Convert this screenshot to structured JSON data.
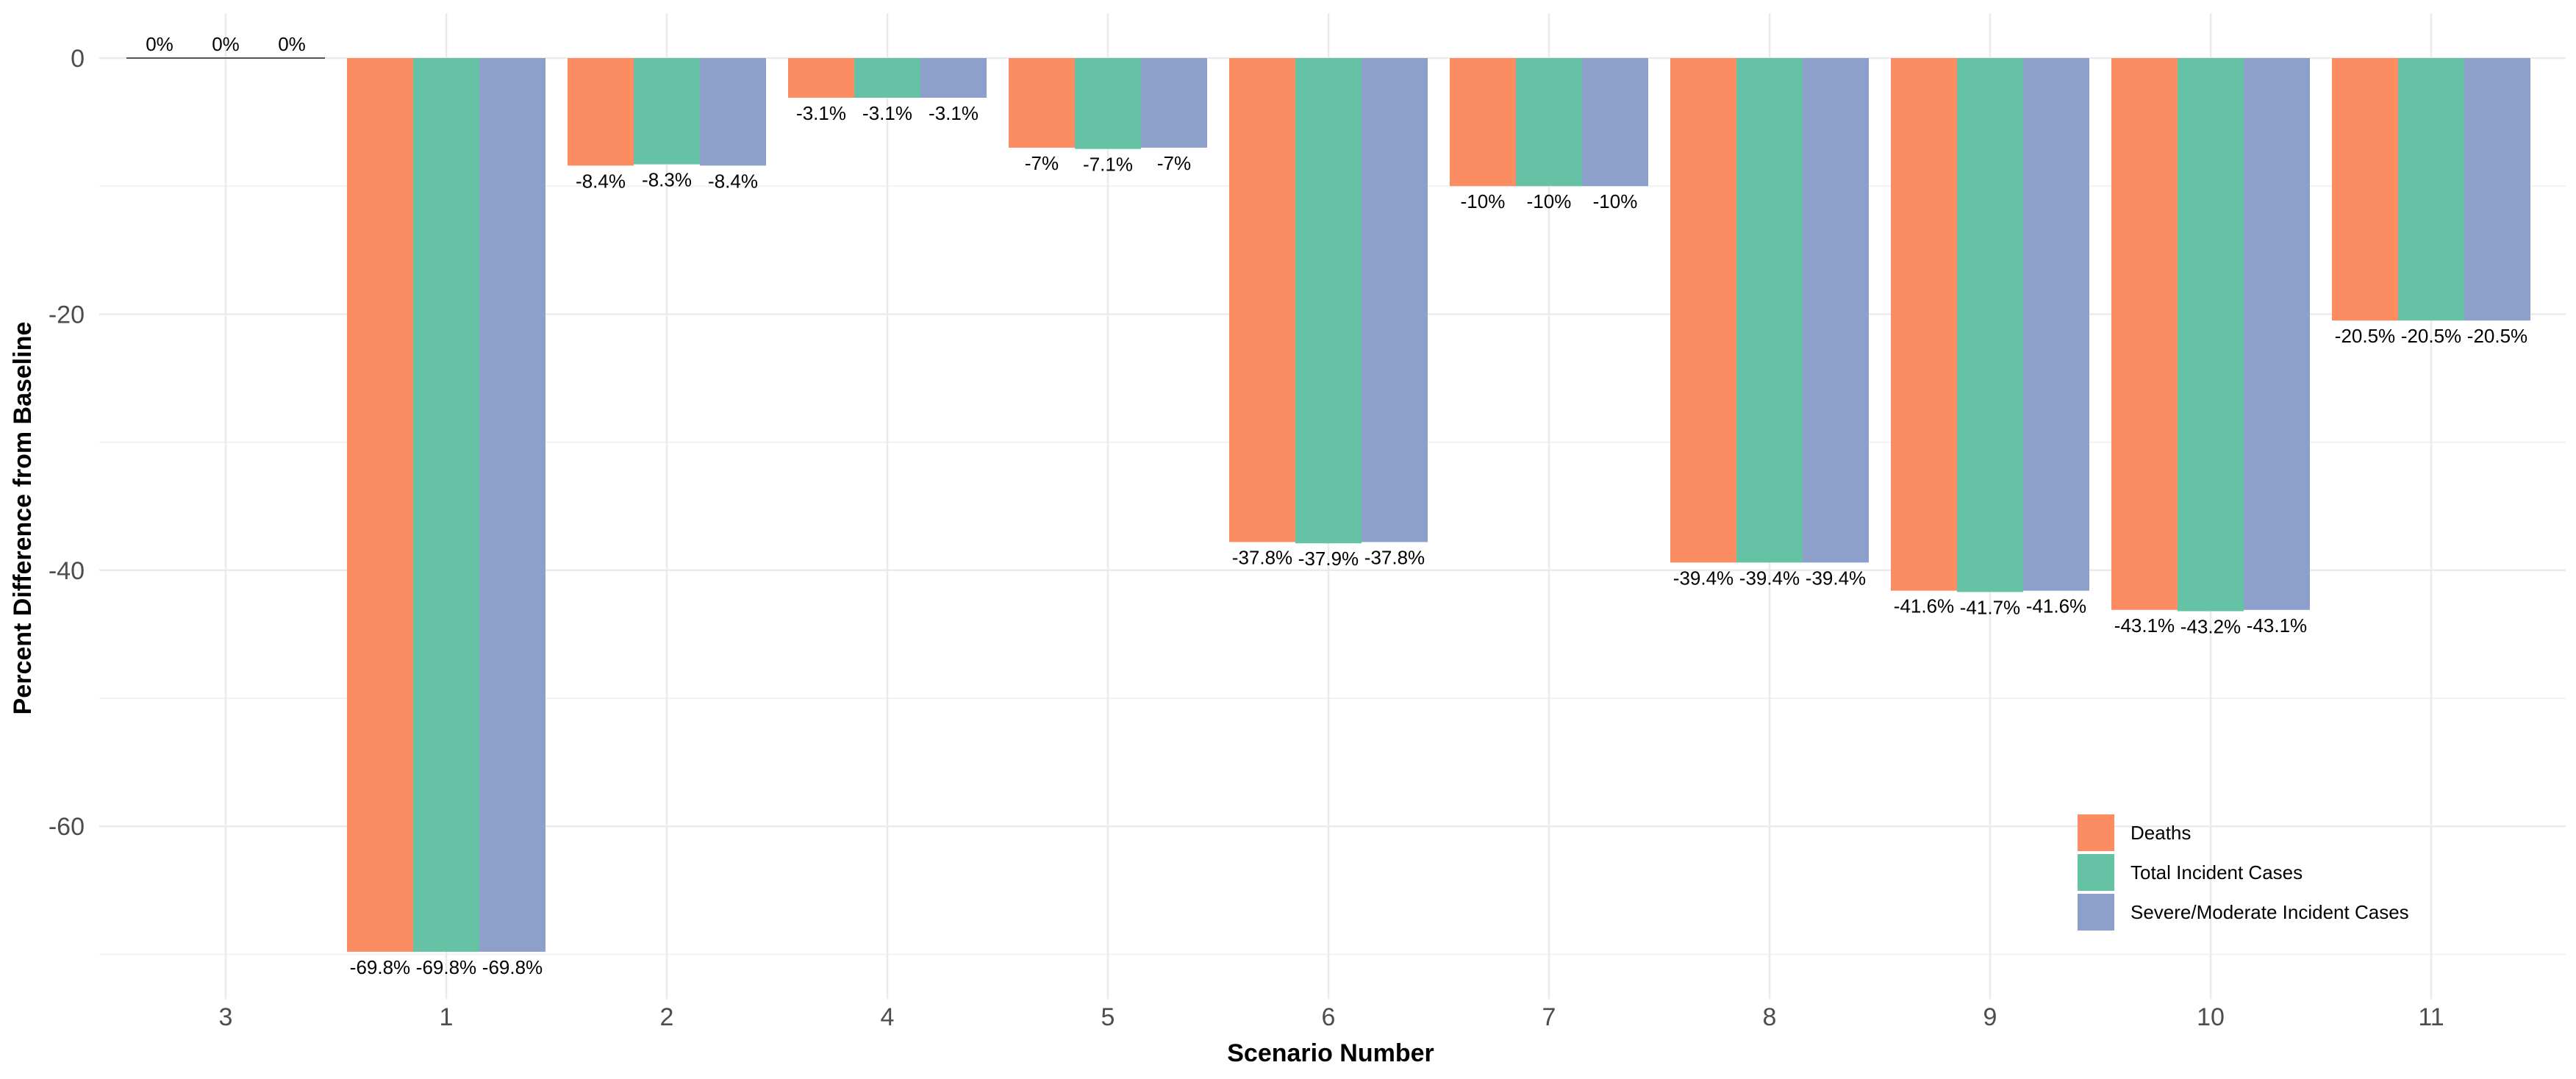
{
  "chart_data": {
    "type": "bar",
    "title": "",
    "xlabel": "Scenario Number",
    "ylabel": "Percent Difference from Baseline",
    "categories": [
      "3",
      "1",
      "2",
      "4",
      "5",
      "6",
      "7",
      "8",
      "9",
      "10",
      "11"
    ],
    "series": [
      {
        "name": "Deaths",
        "color": "#FC8D62",
        "values": [
          0,
          -69.8,
          -8.4,
          -3.1,
          -7.0,
          -37.8,
          -10.0,
          -39.4,
          -41.6,
          -43.1,
          -20.5
        ],
        "labels": [
          "0%",
          "-69.8%",
          "-8.4%",
          "-3.1%",
          "-7%",
          "-37.8%",
          "-10%",
          "-39.4%",
          "-41.6%",
          "-43.1%",
          "-20.5%"
        ]
      },
      {
        "name": "Total Incident Cases",
        "color": "#66C2A5",
        "values": [
          0,
          -69.8,
          -8.3,
          -3.1,
          -7.1,
          -37.9,
          -10.0,
          -39.4,
          -41.7,
          -43.2,
          -20.5
        ],
        "labels": [
          "0%",
          "-69.8%",
          "-8.3%",
          "-3.1%",
          "-7.1%",
          "-37.9%",
          "-10%",
          "-39.4%",
          "-41.7%",
          "-43.2%",
          "-20.5%"
        ]
      },
      {
        "name": "Severe/Moderate Incident Cases",
        "color": "#8DA0CB",
        "values": [
          0,
          -69.8,
          -8.4,
          -3.1,
          -7.0,
          -37.8,
          -10.0,
          -39.4,
          -41.6,
          -43.1,
          -20.5
        ],
        "labels": [
          "0%",
          "-69.8%",
          "-8.4%",
          "-3.1%",
          "-7%",
          "-37.8%",
          "-10%",
          "-39.4%",
          "-41.6%",
          "-43.1%",
          "-20.5%"
        ]
      }
    ],
    "yticks": [
      0,
      -20,
      -40,
      -60
    ],
    "ytick_labels": [
      "0",
      "-20",
      "-40",
      "-60"
    ],
    "ylim": [
      -73.5,
      3.5
    ],
    "grid": true,
    "legend_position": "bottom-right"
  }
}
